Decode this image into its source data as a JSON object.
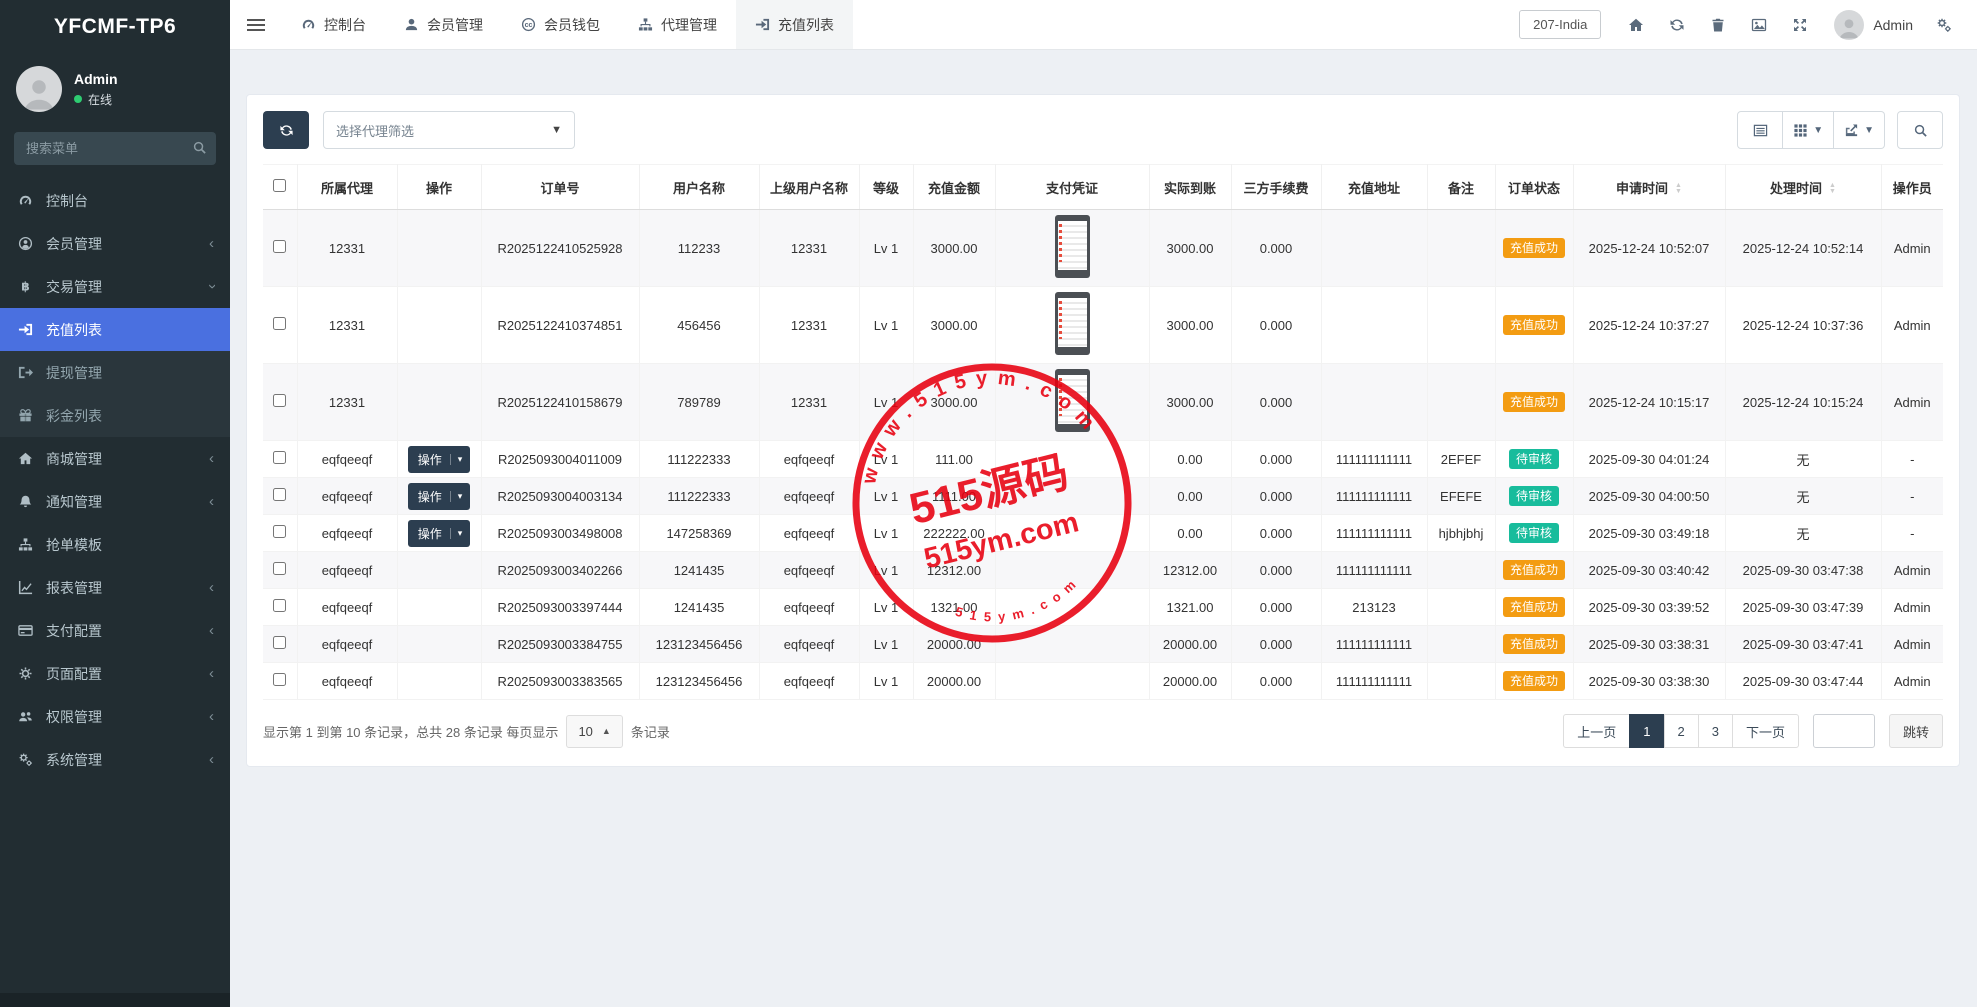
{
  "app": {
    "logo": "YFCMF-TP6",
    "region": "207-India",
    "admin_label": "Admin"
  },
  "user": {
    "name": "Admin",
    "status": "在线"
  },
  "sidebar": {
    "search_placeholder": "搜索菜单",
    "items": [
      {
        "label": "控制台",
        "icon": "tachometer"
      },
      {
        "label": "会员管理",
        "icon": "user-circle",
        "chevron": "left"
      },
      {
        "label": "交易管理",
        "icon": "bitcoin",
        "chevron": "down",
        "open": true
      },
      {
        "label": "充值列表",
        "icon": "sign-in",
        "sub": true,
        "active": true
      },
      {
        "label": "提现管理",
        "icon": "sign-out",
        "sub": true
      },
      {
        "label": "彩金列表",
        "icon": "gift",
        "sub": true
      },
      {
        "label": "商城管理",
        "icon": "home",
        "chevron": "left"
      },
      {
        "label": "通知管理",
        "icon": "bell",
        "chevron": "left"
      },
      {
        "label": "抢单模板",
        "icon": "sitemap"
      },
      {
        "label": "报表管理",
        "icon": "chart",
        "chevron": "left"
      },
      {
        "label": "支付配置",
        "icon": "credit-card",
        "chevron": "left"
      },
      {
        "label": "页面配置",
        "icon": "gear",
        "chevron": "left"
      },
      {
        "label": "权限管理",
        "icon": "users",
        "chevron": "left"
      },
      {
        "label": "系统管理",
        "icon": "cogs",
        "chevron": "left"
      }
    ]
  },
  "topnav": {
    "items": [
      {
        "label": "控制台",
        "icon": "tachometer"
      },
      {
        "label": "会员管理",
        "icon": "user"
      },
      {
        "label": "会员钱包",
        "icon": "wallet"
      },
      {
        "label": "代理管理",
        "icon": "sitemap"
      },
      {
        "label": "充值列表",
        "icon": "sign-in",
        "active": true
      }
    ]
  },
  "toolbar": {
    "agent_filter_placeholder": "选择代理筛选"
  },
  "badges": {
    "success": {
      "label": "充值成功",
      "color": "#f39c12"
    },
    "pending": {
      "label": "待审核",
      "color": "#18bc9c"
    }
  },
  "table": {
    "action_label": "操作",
    "columns": [
      {
        "key": "checkbox",
        "label": ""
      },
      {
        "key": "agent",
        "label": "所属代理"
      },
      {
        "key": "action",
        "label": "操作"
      },
      {
        "key": "order-no",
        "label": "订单号"
      },
      {
        "key": "username",
        "label": "用户名称"
      },
      {
        "key": "parent",
        "label": "上级用户名称"
      },
      {
        "key": "level",
        "label": "等级"
      },
      {
        "key": "amount",
        "label": "充值金额"
      },
      {
        "key": "voucher",
        "label": "支付凭证"
      },
      {
        "key": "actual",
        "label": "实际到账"
      },
      {
        "key": "fee",
        "label": "三方手续费"
      },
      {
        "key": "address",
        "label": "充值地址"
      },
      {
        "key": "remark",
        "label": "备注"
      },
      {
        "key": "status",
        "label": "订单状态"
      },
      {
        "key": "apply-time",
        "label": "申请时间",
        "sortable": true
      },
      {
        "key": "process-time",
        "label": "处理时间",
        "sortable": true
      },
      {
        "key": "operator",
        "label": "操作员"
      }
    ],
    "rows": [
      {
        "agent": "12331",
        "action": false,
        "order_no": "R2025122410525928",
        "username": "112233",
        "parent": "12331",
        "level": "Lv 1",
        "amount": "3000.00",
        "voucher": true,
        "actual": "3000.00",
        "fee": "0.000",
        "address": "",
        "remark": "",
        "status": "success",
        "apply_time": "2025-12-24 10:52:07",
        "process_time": "2025-12-24 10:52:14",
        "operator": "Admin"
      },
      {
        "agent": "12331",
        "action": false,
        "order_no": "R2025122410374851",
        "username": "456456",
        "parent": "12331",
        "level": "Lv 1",
        "amount": "3000.00",
        "voucher": true,
        "actual": "3000.00",
        "fee": "0.000",
        "address": "",
        "remark": "",
        "status": "success",
        "apply_time": "2025-12-24 10:37:27",
        "process_time": "2025-12-24 10:37:36",
        "operator": "Admin"
      },
      {
        "agent": "12331",
        "action": false,
        "order_no": "R2025122410158679",
        "username": "789789",
        "parent": "12331",
        "level": "Lv 1",
        "amount": "3000.00",
        "voucher": true,
        "actual": "3000.00",
        "fee": "0.000",
        "address": "",
        "remark": "",
        "status": "success",
        "apply_time": "2025-12-24 10:15:17",
        "process_time": "2025-12-24 10:15:24",
        "operator": "Admin"
      },
      {
        "agent": "eqfqeeqf",
        "action": true,
        "order_no": "R2025093004011009",
        "username": "111222333",
        "parent": "eqfqeeqf",
        "level": "Lv 1",
        "amount": "111.00",
        "voucher": false,
        "actual": "0.00",
        "fee": "0.000",
        "address": "111111111111",
        "remark": "2EFEF",
        "status": "pending",
        "apply_time": "2025-09-30 04:01:24",
        "process_time": "无",
        "operator": "-"
      },
      {
        "agent": "eqfqeeqf",
        "action": true,
        "order_no": "R2025093004003134",
        "username": "111222333",
        "parent": "eqfqeeqf",
        "level": "Lv 1",
        "amount": "1111.00",
        "voucher": false,
        "actual": "0.00",
        "fee": "0.000",
        "address": "111111111111",
        "remark": "EFEFE",
        "status": "pending",
        "apply_time": "2025-09-30 04:00:50",
        "process_time": "无",
        "operator": "-"
      },
      {
        "agent": "eqfqeeqf",
        "action": true,
        "order_no": "R2025093003498008",
        "username": "147258369",
        "parent": "eqfqeeqf",
        "level": "Lv 1",
        "amount": "222222.00",
        "voucher": false,
        "actual": "0.00",
        "fee": "0.000",
        "address": "111111111111",
        "remark": "hjbhjbhj",
        "status": "pending",
        "apply_time": "2025-09-30 03:49:18",
        "process_time": "无",
        "operator": "-"
      },
      {
        "agent": "eqfqeeqf",
        "action": false,
        "order_no": "R2025093003402266",
        "username": "1241435",
        "parent": "eqfqeeqf",
        "level": "Lv 1",
        "amount": "12312.00",
        "voucher": false,
        "actual": "12312.00",
        "fee": "0.000",
        "address": "111111111111",
        "remark": "",
        "status": "success",
        "apply_time": "2025-09-30 03:40:42",
        "process_time": "2025-09-30 03:47:38",
        "operator": "Admin"
      },
      {
        "agent": "eqfqeeqf",
        "action": false,
        "order_no": "R2025093003397444",
        "username": "1241435",
        "parent": "eqfqeeqf",
        "level": "Lv 1",
        "amount": "1321.00",
        "voucher": false,
        "actual": "1321.00",
        "fee": "0.000",
        "address": "213123",
        "remark": "",
        "status": "success",
        "apply_time": "2025-09-30 03:39:52",
        "process_time": "2025-09-30 03:47:39",
        "operator": "Admin"
      },
      {
        "agent": "eqfqeeqf",
        "action": false,
        "order_no": "R2025093003384755",
        "username": "123123456456",
        "parent": "eqfqeeqf",
        "level": "Lv 1",
        "amount": "20000.00",
        "voucher": false,
        "actual": "20000.00",
        "fee": "0.000",
        "address": "111111111111",
        "remark": "",
        "status": "success",
        "apply_time": "2025-09-30 03:38:31",
        "process_time": "2025-09-30 03:47:41",
        "operator": "Admin"
      },
      {
        "agent": "eqfqeeqf",
        "action": false,
        "order_no": "R2025093003383565",
        "username": "123123456456",
        "parent": "eqfqeeqf",
        "level": "Lv 1",
        "amount": "20000.00",
        "voucher": false,
        "actual": "20000.00",
        "fee": "0.000",
        "address": "111111111111",
        "remark": "",
        "status": "success",
        "apply_time": "2025-09-30 03:38:30",
        "process_time": "2025-09-30 03:47:44",
        "operator": "Admin"
      }
    ]
  },
  "footer": {
    "info_prefix": "显示第 1 到第 10 条记录，总共 28 条记录 每页显示",
    "page_size": "10",
    "info_suffix": "条记录"
  },
  "pagination": {
    "prev": "上一页",
    "pages": [
      "1",
      "2",
      "3"
    ],
    "active": "1",
    "next": "下一页",
    "jump": "跳转"
  },
  "watermark": {
    "arc_top": "w w w . 5 1 5 y m . c o m",
    "line1": "515源码",
    "line2": "515ym.com",
    "arc_bottom": "5 1 5 y m . c o m",
    "color": "#e8000f"
  }
}
